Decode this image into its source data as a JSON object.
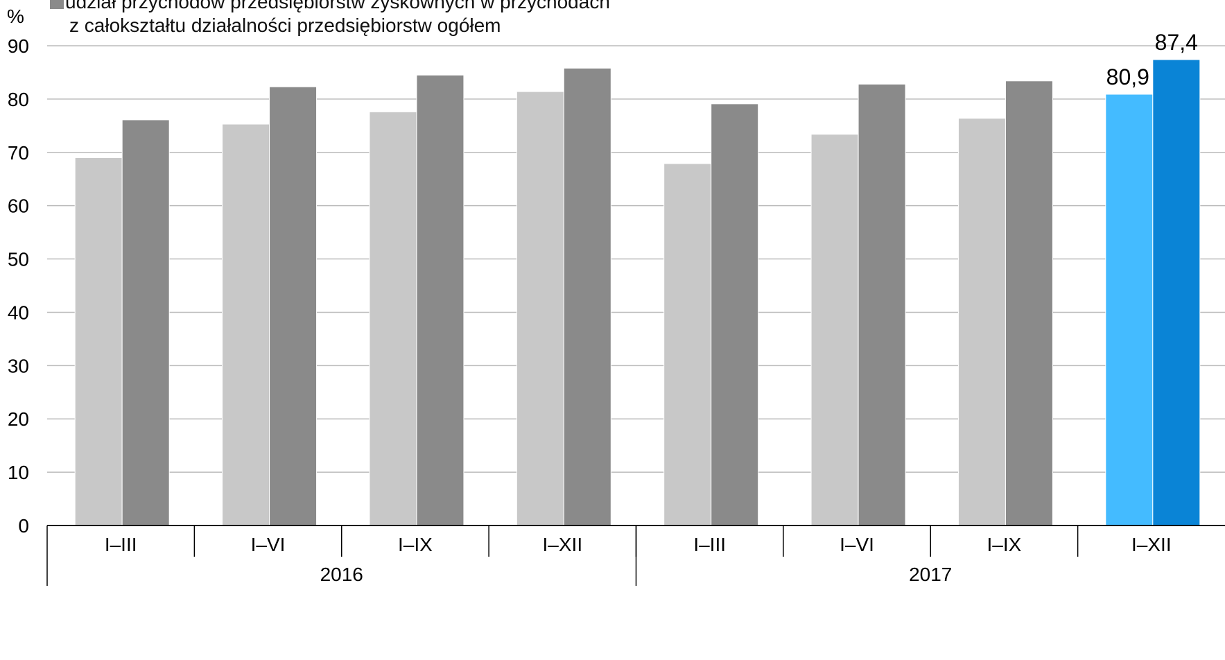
{
  "legend": {
    "line1": "udział przychodów przedsiębiorstw zyskownych w przychodach",
    "line2": "z całokształtu działalności przedsiębiorstw ogółem"
  },
  "colors": {
    "series1": "#c8c8c8",
    "series2": "#8a8a8a",
    "highlight1": "#44bbff",
    "highlight2": "#0a84d6",
    "grid": "#bbbbbb",
    "axis": "#000000"
  },
  "chart_data": {
    "type": "bar",
    "unit_label": "%",
    "ylim": [
      0,
      90
    ],
    "yticks": [
      0,
      10,
      20,
      30,
      40,
      50,
      60,
      70,
      80,
      90
    ],
    "grid": true,
    "categories": [
      "I–III",
      "I–VI",
      "I–IX",
      "I–XII",
      "I–III",
      "I–VI",
      "I–IX",
      "I–XII"
    ],
    "groups": [
      {
        "label": "2016",
        "span": 4
      },
      {
        "label": "2017",
        "span": 4
      }
    ],
    "series": [
      {
        "values": [
          69.0,
          75.3,
          77.6,
          81.4,
          67.9,
          73.4,
          76.4,
          80.9
        ]
      },
      {
        "name": "udział przychodów przedsiębiorstw zyskownych w przychodach z całokształtu działalności przedsiębiorstw ogółem",
        "values": [
          76.1,
          82.3,
          84.5,
          85.8,
          79.1,
          82.8,
          83.4,
          87.4
        ]
      }
    ],
    "data_labels": [
      {
        "category_index": 7,
        "series_index": 0,
        "text": "80,9"
      },
      {
        "category_index": 7,
        "series_index": 1,
        "text": "87,4"
      }
    ],
    "highlight_category_index": 7
  }
}
